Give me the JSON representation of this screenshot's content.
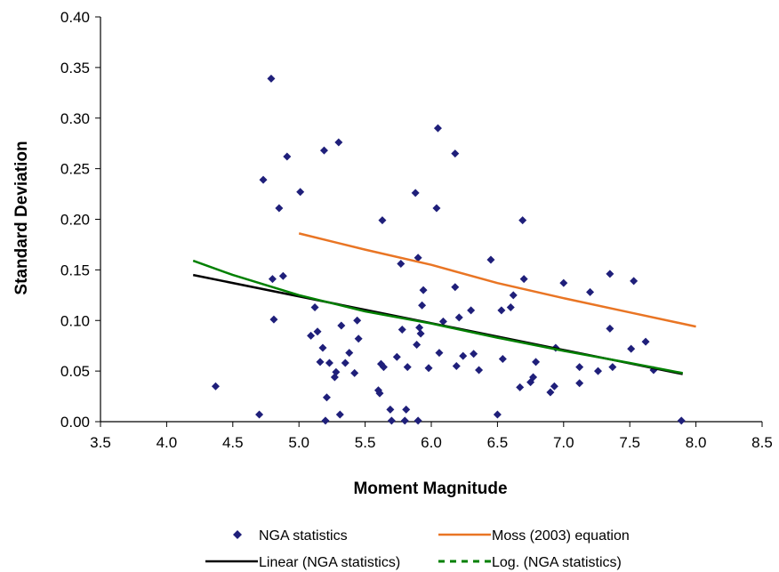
{
  "chart_data": {
    "type": "scatter",
    "xlabel": "Moment Magnitude",
    "ylabel": "Standard Deviation",
    "xlim": [
      3.5,
      8.5
    ],
    "ylim": [
      0.0,
      0.4
    ],
    "x_ticks": [
      "3.5",
      "4.0",
      "4.5",
      "5.0",
      "5.5",
      "6.0",
      "6.5",
      "7.0",
      "7.5",
      "8.0",
      "8.5"
    ],
    "y_ticks": [
      "0.00",
      "0.05",
      "0.10",
      "0.15",
      "0.20",
      "0.25",
      "0.30",
      "0.35",
      "0.40"
    ],
    "grid": false,
    "legend_position": "bottom",
    "series": [
      {
        "name": "NGA statistics",
        "kind": "scatter",
        "marker": "diamond",
        "color": "#1f1f7a",
        "points": [
          [
            4.37,
            0.035
          ],
          [
            4.7,
            0.007
          ],
          [
            4.73,
            0.239
          ],
          [
            4.79,
            0.339
          ],
          [
            4.8,
            0.141
          ],
          [
            4.81,
            0.101
          ],
          [
            4.85,
            0.211
          ],
          [
            4.88,
            0.144
          ],
          [
            4.91,
            0.262
          ],
          [
            5.01,
            0.227
          ],
          [
            5.09,
            0.085
          ],
          [
            5.12,
            0.113
          ],
          [
            5.14,
            0.089
          ],
          [
            5.16,
            0.059
          ],
          [
            5.18,
            0.073
          ],
          [
            5.19,
            0.268
          ],
          [
            5.2,
            0.001
          ],
          [
            5.21,
            0.024
          ],
          [
            5.23,
            0.058
          ],
          [
            5.27,
            0.044
          ],
          [
            5.28,
            0.049
          ],
          [
            5.3,
            0.276
          ],
          [
            5.31,
            0.007
          ],
          [
            5.32,
            0.095
          ],
          [
            5.35,
            0.058
          ],
          [
            5.38,
            0.068
          ],
          [
            5.42,
            0.048
          ],
          [
            5.44,
            0.1
          ],
          [
            5.45,
            0.082
          ],
          [
            5.6,
            0.031
          ],
          [
            5.61,
            0.028
          ],
          [
            5.62,
            0.057
          ],
          [
            5.63,
            0.199
          ],
          [
            5.64,
            0.054
          ],
          [
            5.69,
            0.012
          ],
          [
            5.7,
            0.001
          ],
          [
            5.74,
            0.064
          ],
          [
            5.77,
            0.156
          ],
          [
            5.78,
            0.091
          ],
          [
            5.8,
            0.001
          ],
          [
            5.81,
            0.012
          ],
          [
            5.82,
            0.054
          ],
          [
            5.88,
            0.226
          ],
          [
            5.89,
            0.076
          ],
          [
            5.9,
            0.001
          ],
          [
            5.9,
            0.162
          ],
          [
            5.91,
            0.093
          ],
          [
            5.92,
            0.087
          ],
          [
            5.93,
            0.115
          ],
          [
            5.94,
            0.13
          ],
          [
            5.98,
            0.053
          ],
          [
            6.04,
            0.211
          ],
          [
            6.05,
            0.29
          ],
          [
            6.06,
            0.068
          ],
          [
            6.09,
            0.099
          ],
          [
            6.18,
            0.265
          ],
          [
            6.18,
            0.133
          ],
          [
            6.19,
            0.055
          ],
          [
            6.21,
            0.103
          ],
          [
            6.24,
            0.065
          ],
          [
            6.3,
            0.11
          ],
          [
            6.32,
            0.067
          ],
          [
            6.36,
            0.051
          ],
          [
            6.45,
            0.16
          ],
          [
            6.5,
            0.007
          ],
          [
            6.53,
            0.11
          ],
          [
            6.54,
            0.062
          ],
          [
            6.6,
            0.113
          ],
          [
            6.62,
            0.125
          ],
          [
            6.67,
            0.034
          ],
          [
            6.69,
            0.199
          ],
          [
            6.7,
            0.141
          ],
          [
            6.75,
            0.039
          ],
          [
            6.77,
            0.044
          ],
          [
            6.79,
            0.059
          ],
          [
            6.9,
            0.029
          ],
          [
            6.93,
            0.035
          ],
          [
            6.94,
            0.073
          ],
          [
            7.0,
            0.137
          ],
          [
            7.12,
            0.054
          ],
          [
            7.12,
            0.038
          ],
          [
            7.2,
            0.128
          ],
          [
            7.26,
            0.05
          ],
          [
            7.35,
            0.146
          ],
          [
            7.35,
            0.092
          ],
          [
            7.37,
            0.054
          ],
          [
            7.51,
            0.072
          ],
          [
            7.53,
            0.139
          ],
          [
            7.62,
            0.079
          ],
          [
            7.68,
            0.051
          ],
          [
            7.89,
            0.001
          ]
        ]
      },
      {
        "name": "Moss (2003) equation",
        "kind": "line",
        "color": "#e97524",
        "points": [
          [
            5.0,
            0.186
          ],
          [
            5.5,
            0.17
          ],
          [
            6.0,
            0.155
          ],
          [
            6.5,
            0.137
          ],
          [
            7.0,
            0.122
          ],
          [
            7.5,
            0.108
          ],
          [
            8.0,
            0.094
          ]
        ]
      },
      {
        "name": "Linear (NGA statistics)",
        "kind": "line",
        "color": "#000000",
        "points": [
          [
            4.2,
            0.145
          ],
          [
            7.9,
            0.047
          ]
        ]
      },
      {
        "name": "Log. (NGA statistics)",
        "kind": "line",
        "dashed_in_legend": true,
        "color": "#008000",
        "points": [
          [
            4.2,
            0.159
          ],
          [
            4.5,
            0.145
          ],
          [
            5.0,
            0.125
          ],
          [
            5.5,
            0.109
          ],
          [
            6.0,
            0.097
          ],
          [
            6.5,
            0.083
          ],
          [
            7.0,
            0.07
          ],
          [
            7.5,
            0.058
          ],
          [
            7.9,
            0.048
          ]
        ]
      }
    ]
  }
}
